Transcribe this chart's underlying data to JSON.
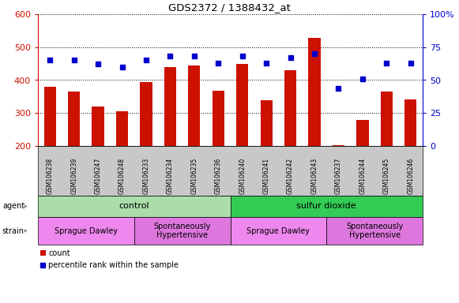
{
  "title": "GDS2372 / 1388432_at",
  "samples": [
    "GSM106238",
    "GSM106239",
    "GSM106247",
    "GSM106248",
    "GSM106233",
    "GSM106234",
    "GSM106235",
    "GSM106236",
    "GSM106240",
    "GSM106241",
    "GSM106242",
    "GSM106243",
    "GSM106237",
    "GSM106244",
    "GSM106245",
    "GSM106246"
  ],
  "counts": [
    380,
    365,
    320,
    305,
    395,
    440,
    445,
    368,
    450,
    338,
    430,
    528,
    202,
    280,
    365,
    342
  ],
  "percentiles": [
    65,
    65,
    62,
    60,
    65,
    68,
    68,
    63,
    68,
    63,
    67,
    70,
    44,
    51,
    63,
    63
  ],
  "ymin": 200,
  "ymax": 600,
  "yticks_left": [
    200,
    300,
    400,
    500,
    600
  ],
  "yticks_right": [
    0,
    25,
    50,
    75,
    100
  ],
  "bar_color": "#cc1100",
  "dot_color": "#0000cc",
  "agent_groups": [
    {
      "label": "control",
      "start": 0,
      "end": 8,
      "color": "#aaddaa"
    },
    {
      "label": "sulfur dioxide",
      "start": 8,
      "end": 16,
      "color": "#33cc55"
    }
  ],
  "strain_groups": [
    {
      "label": "Sprague Dawley",
      "start": 0,
      "end": 4,
      "color": "#ee88ee"
    },
    {
      "label": "Spontaneously\nHypertensive",
      "start": 4,
      "end": 8,
      "color": "#dd77dd"
    },
    {
      "label": "Sprague Dawley",
      "start": 8,
      "end": 12,
      "color": "#ee88ee"
    },
    {
      "label": "Spontaneously\nHypertensive",
      "start": 12,
      "end": 16,
      "color": "#dd77dd"
    }
  ],
  "legend_count_color": "#cc1100",
  "legend_dot_color": "#0000cc",
  "tick_bg_color": "#c8c8c8",
  "chart_bg_color": "#ffffff"
}
